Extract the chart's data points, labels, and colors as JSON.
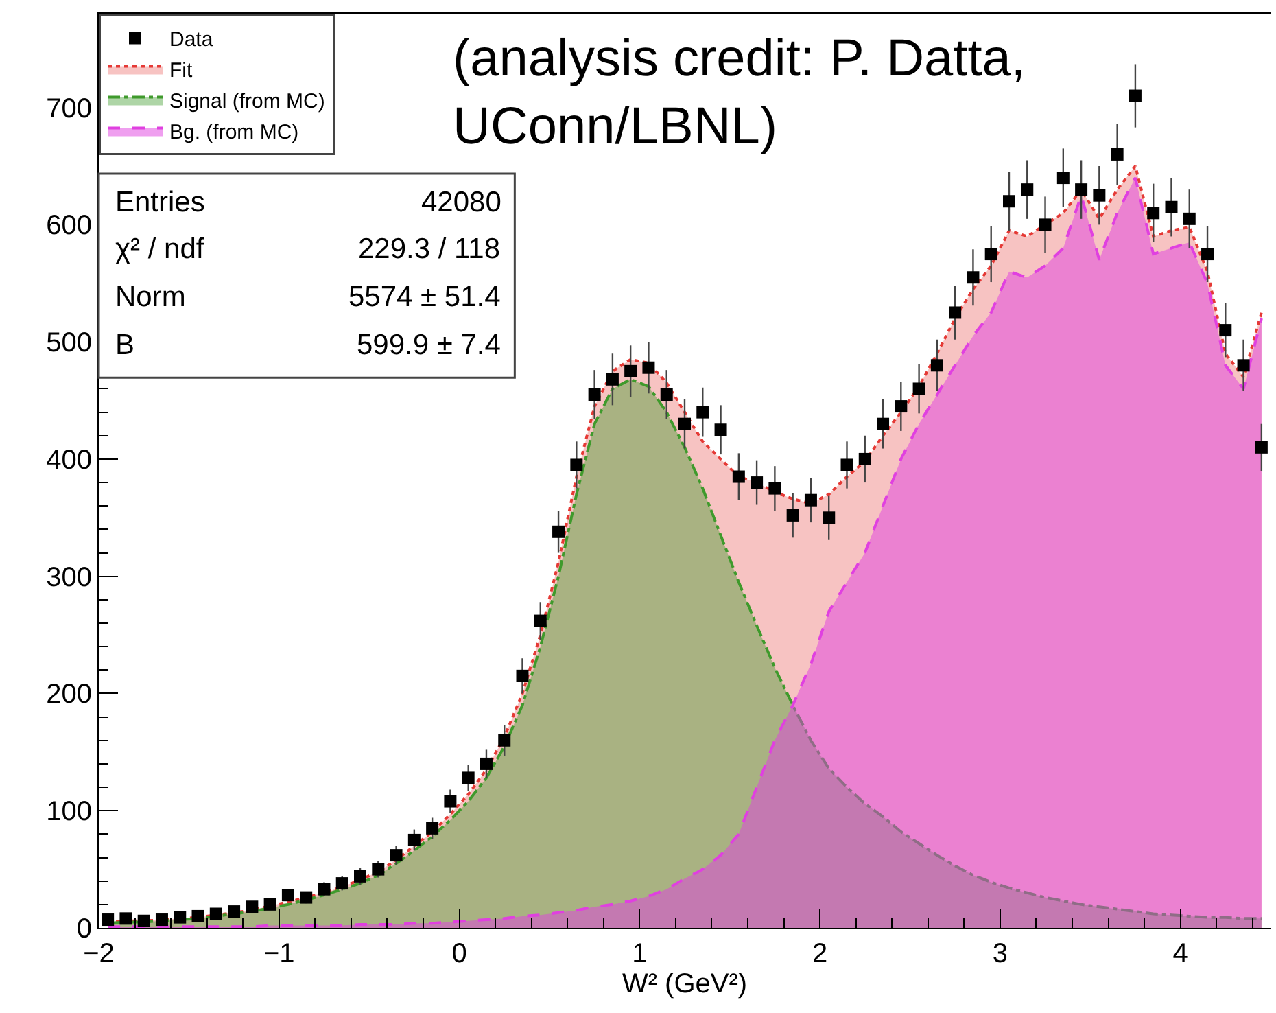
{
  "chart_data": {
    "type": "area",
    "xlabel": "W² (GeV²)",
    "x": [
      -1.95,
      -1.85,
      -1.75,
      -1.65,
      -1.55,
      -1.45,
      -1.35,
      -1.25,
      -1.15,
      -1.05,
      -0.95,
      -0.85,
      -0.75,
      -0.65,
      -0.55,
      -0.45,
      -0.35,
      -0.25,
      -0.15,
      -0.05,
      0.05,
      0.15,
      0.25,
      0.35,
      0.45,
      0.55,
      0.65,
      0.75,
      0.85,
      0.95,
      1.05,
      1.15,
      1.25,
      1.35,
      1.45,
      1.55,
      1.65,
      1.75,
      1.85,
      1.95,
      2.05,
      2.15,
      2.25,
      2.35,
      2.45,
      2.55,
      2.65,
      2.75,
      2.85,
      2.95,
      3.05,
      3.15,
      3.25,
      3.35,
      3.45,
      3.55,
      3.65,
      3.75,
      3.85,
      3.95,
      4.05,
      4.15,
      4.25,
      4.35,
      4.45
    ],
    "series": [
      {
        "name": "Data",
        "type": "scatter",
        "marker": "square",
        "color": "#000000",
        "values": [
          7,
          8,
          6,
          7,
          9,
          10,
          12,
          14,
          18,
          20,
          28,
          26,
          33,
          38,
          44,
          50,
          62,
          75,
          85,
          108,
          128,
          140,
          160,
          215,
          262,
          338,
          395,
          455,
          468,
          475,
          478,
          455,
          430,
          440,
          425,
          385,
          380,
          375,
          352,
          365,
          350,
          395,
          400,
          430,
          445,
          460,
          480,
          525,
          555,
          575,
          620,
          630,
          600,
          640,
          630,
          625,
          660,
          710,
          610,
          615,
          605,
          575,
          510,
          480,
          410
        ],
        "errors": [
          3,
          3,
          2,
          3,
          3,
          3,
          3,
          4,
          4,
          4,
          5,
          5,
          6,
          6,
          7,
          7,
          8,
          9,
          9,
          10,
          11,
          12,
          13,
          15,
          16,
          18,
          20,
          21,
          22,
          22,
          22,
          21,
          21,
          21,
          21,
          20,
          19,
          19,
          19,
          19,
          19,
          20,
          20,
          21,
          21,
          21,
          22,
          23,
          24,
          24,
          25,
          25,
          24,
          25,
          25,
          25,
          26,
          27,
          25,
          25,
          25,
          24,
          23,
          22,
          20
        ]
      },
      {
        "name": "Fit",
        "line_style": "dotted",
        "color": "#e53935",
        "values": [
          5,
          6,
          6,
          7,
          8,
          9,
          11,
          13,
          15,
          19,
          22,
          26,
          30,
          35,
          41,
          48,
          58,
          70,
          82,
          97,
          114,
          135,
          163,
          200,
          250,
          312,
          385,
          445,
          475,
          485,
          482,
          465,
          440,
          415,
          400,
          385,
          380,
          372,
          366,
          362,
          370,
          385,
          398,
          420,
          440,
          462,
          490,
          520,
          545,
          565,
          595,
          590,
          600,
          610,
          630,
          605,
          630,
          650,
          590,
          595,
          598,
          560,
          490,
          470,
          525
        ]
      },
      {
        "name": "Signal (from MC)",
        "line_style": "dashdot",
        "color": "#3f9a2c",
        "values": [
          4,
          5,
          5,
          6,
          7,
          8,
          10,
          12,
          14,
          17,
          20,
          24,
          28,
          33,
          38,
          45,
          55,
          66,
          78,
          92,
          108,
          128,
          155,
          190,
          240,
          300,
          370,
          430,
          460,
          468,
          462,
          440,
          410,
          375,
          335,
          295,
          258,
          222,
          190,
          160,
          136,
          120,
          106,
          95,
          82,
          72,
          62,
          53,
          45,
          39,
          34,
          30,
          26,
          23,
          20,
          18,
          16,
          14,
          12,
          11,
          10,
          9,
          9,
          8,
          8
        ]
      },
      {
        "name": "Bg. (from MC)",
        "line_style": "dashed",
        "color": "#e040e0",
        "values": [
          1,
          1,
          1,
          1,
          1,
          1,
          1,
          1,
          1,
          2,
          2,
          2,
          2,
          2,
          3,
          3,
          3,
          4,
          4,
          5,
          6,
          7,
          8,
          10,
          11,
          13,
          15,
          18,
          20,
          23,
          27,
          33,
          42,
          50,
          62,
          80,
          120,
          160,
          190,
          225,
          270,
          295,
          320,
          360,
          400,
          430,
          455,
          480,
          505,
          525,
          560,
          555,
          565,
          580,
          625,
          570,
          610,
          640,
          575,
          580,
          585,
          550,
          480,
          460,
          520
        ]
      }
    ],
    "xlim": [
      -2,
      4.5
    ],
    "xticks": [
      -2,
      -1,
      0,
      1,
      2,
      3,
      4
    ],
    "ylim": [
      0,
      780
    ],
    "yticks": [
      0,
      100,
      200,
      300,
      400,
      500,
      600,
      700
    ],
    "legend": "top left",
    "annotations": [
      "(analysis credit: P. Datta, UConn/LBNL)",
      "Entries",
      "42080",
      "χ² / ndf",
      "229.3 / 118",
      "Norm",
      "5574 ± 51.4",
      "B",
      "599.9 ± 7.4"
    ]
  }
}
